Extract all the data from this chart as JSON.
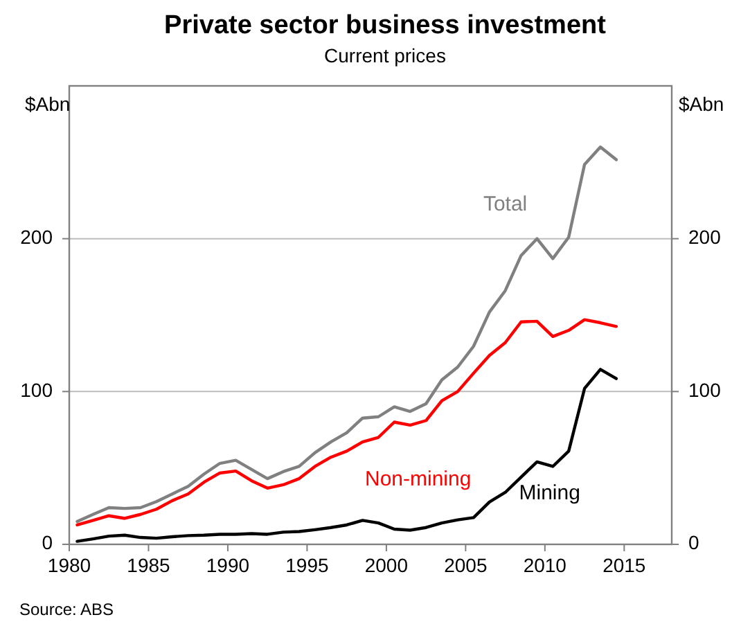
{
  "chart_data": {
    "type": "line",
    "title": "Private sector business investment",
    "subtitle": "Current prices",
    "ylabel": "$Abn",
    "y2label": "$Abn",
    "annotations": [
      "Source: ABS"
    ],
    "x": [
      1980.5,
      1981.5,
      1982.5,
      1983.5,
      1984.5,
      1985.5,
      1986.5,
      1987.5,
      1988.5,
      1989.5,
      1990.5,
      1991.5,
      1992.5,
      1993.5,
      1994.5,
      1995.5,
      1996.5,
      1997.5,
      1998.5,
      1999.5,
      2000.5,
      2001.5,
      2002.5,
      2003.5,
      2004.5,
      2005.5,
      2006.5,
      2007.5,
      2008.5,
      2009.5,
      2010.5,
      2011.5,
      2012.5,
      2013.5,
      2014.5
    ],
    "series": [
      {
        "name": "Total",
        "color": "#808080",
        "values": [
          15,
          19.6,
          24,
          23.5,
          24,
          28,
          33,
          38,
          46,
          53,
          55,
          49,
          43,
          47.6,
          51,
          60,
          67,
          73,
          82.6,
          83.5,
          90,
          87,
          92,
          107.6,
          116,
          129.6,
          152,
          166,
          189,
          200,
          187,
          201,
          248.6,
          260,
          251.7
        ]
      },
      {
        "name": "Non-mining",
        "color": "#ff0000",
        "values": [
          12.7,
          15.7,
          18.7,
          17,
          19.6,
          23,
          28.6,
          33,
          40.7,
          46.7,
          48,
          41.6,
          36.8,
          39,
          43,
          51,
          57,
          61,
          67,
          70,
          80,
          78,
          81,
          94,
          100,
          112,
          123.6,
          132,
          145.6,
          146,
          136,
          140,
          147,
          145,
          142.6
        ]
      },
      {
        "name": "Mining",
        "color": "#000000",
        "values": [
          2,
          3.6,
          5.4,
          6,
          4.5,
          4,
          5,
          5.7,
          6,
          6.6,
          6.6,
          7,
          6.6,
          8,
          8.4,
          9.6,
          11,
          12.7,
          15.7,
          14,
          10,
          9.3,
          11,
          14,
          16,
          17.5,
          27.7,
          34,
          44,
          54,
          51,
          61,
          102,
          114.5,
          108.5
        ]
      }
    ],
    "xlim": [
      1980,
      2018
    ],
    "xticks": [
      1980,
      1985,
      1990,
      1995,
      2000,
      2005,
      2010,
      2015
    ],
    "ylim": [
      0,
      300
    ],
    "yticks": [
      0,
      100,
      200
    ],
    "y2lim": [
      0,
      300
    ],
    "y2ticks": [
      0,
      100,
      200
    ],
    "grid": "y",
    "legend": false
  }
}
